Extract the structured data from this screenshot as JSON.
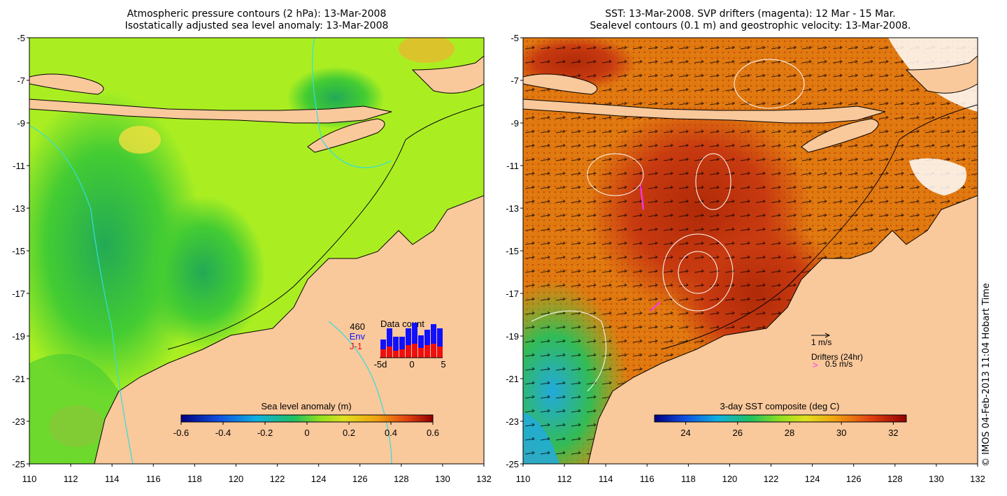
{
  "left_panel": {
    "title_line1": "Atmospheric pressure contours (2 hPa): 13-Mar-2008",
    "title_line2": "Isostatically adjusted sea level anomaly: 13-Mar-2008",
    "colorbar_label": "Sea level anomaly (m)",
    "colorbar_ticks": [
      "-0.6",
      "-0.4",
      "-0.2",
      "0",
      "0.2",
      "0.4",
      "0.6"
    ],
    "data_count": {
      "label": "Data count",
      "total": "460",
      "env_label": "Env",
      "j1_label": "J-1",
      "x_ticks": [
        "-5d",
        "0",
        "5"
      ],
      "env_colors": "#1010ff",
      "j1_colors": "#ee1010"
    }
  },
  "right_panel": {
    "title_line1": "SST: 13-Mar-2008. SVP drifters (magenta): 12 Mar - 15 Mar.",
    "title_line2": "Sealevel contours (0.1 m) and geostrophic velocity: 13-Mar-2008.",
    "colorbar_label": "3-day SST composite (deg C)",
    "colorbar_ticks": [
      "24",
      "26",
      "28",
      "30",
      "32"
    ],
    "velocity_scale_label": "1 m/s",
    "drifters_label": "Drifters (24hr)",
    "drifter_speed_label": "0.5 m/s",
    "drifter_symbol": ">"
  },
  "axes": {
    "y_ticks": [
      "-5",
      "-7",
      "-9",
      "-11",
      "-13",
      "-15",
      "-17",
      "-19",
      "-21",
      "-23",
      "-25"
    ],
    "x_ticks": [
      "110",
      "112",
      "114",
      "116",
      "118",
      "120",
      "122",
      "124",
      "126",
      "128",
      "130",
      "132"
    ]
  },
  "colors": {
    "land": "#f9c89b",
    "sla_main": "#aaee22",
    "sla_low": "#44cc33",
    "sst_warm": "#e07810",
    "sst_hot": "#c83a10",
    "sst_cool": "#33bb55",
    "drifter": "#ff33ff",
    "contour_cyan": "#33dddd"
  },
  "credit": "© IMOS 04-Feb-2013 11:04 Hobart Time"
}
